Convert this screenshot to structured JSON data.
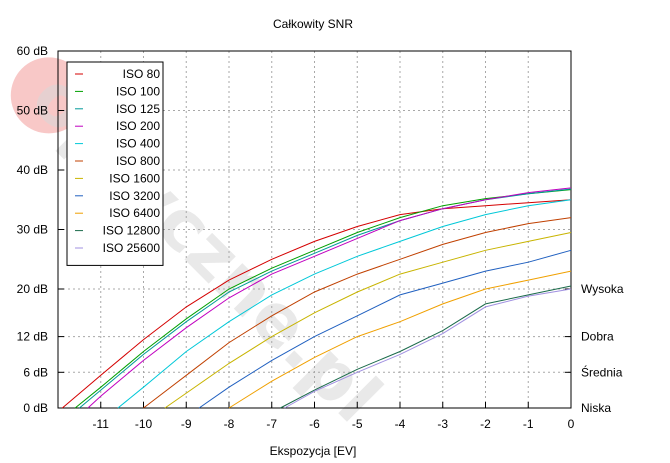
{
  "chart_data": {
    "type": "line",
    "title": "Całkowity SNR",
    "xlabel": "Ekspozycja [EV]",
    "ylabel": "",
    "x_ticks": [
      "-11",
      "-10",
      "-9",
      "-8",
      "-7",
      "-6",
      "-5",
      "-4",
      "-3",
      "-2",
      "-1",
      "0"
    ],
    "y_ticks": [
      {
        "value": 0,
        "label": "0 dB"
      },
      {
        "value": 6,
        "label": "6 dB"
      },
      {
        "value": 12,
        "label": "12 dB"
      },
      {
        "value": 20,
        "label": "20 dB"
      },
      {
        "value": 30,
        "label": "30 dB"
      },
      {
        "value": 40,
        "label": "40 dB"
      },
      {
        "value": 50,
        "label": "50 dB"
      },
      {
        "value": 60,
        "label": "60 dB"
      }
    ],
    "xlim": [
      -12,
      0
    ],
    "ylim": [
      0,
      60
    ],
    "y_scale": "non-linear (equally spaced ticks 0–20 dB and 20–60 dB segments)",
    "grid": true,
    "legend_position": "top-left",
    "quality_labels": [
      {
        "value": 20,
        "label": "Wysoka"
      },
      {
        "value": 12,
        "label": "Dobra"
      },
      {
        "value": 6,
        "label": "Średnia"
      },
      {
        "value": 0,
        "label": "Niska"
      }
    ],
    "series": [
      {
        "name": "ISO 80",
        "color": "#d40000",
        "x": [
          -11.9,
          -11,
          -10,
          -9,
          -8,
          -7,
          -6,
          -5,
          -4,
          -3,
          -2,
          -1,
          0
        ],
        "values": [
          0,
          5.5,
          11.5,
          17,
          21.5,
          25,
          28,
          30.5,
          32.5,
          33.5,
          34,
          34.5,
          35
        ]
      },
      {
        "name": "ISO 100",
        "color": "#00a000",
        "x": [
          -11.6,
          -11,
          -10,
          -9,
          -8,
          -7,
          -6,
          -5,
          -4,
          -3,
          -2,
          -1,
          0
        ],
        "values": [
          0,
          3.5,
          9.5,
          15,
          20,
          23.5,
          26.5,
          29.5,
          32,
          34,
          35.2,
          36,
          36.7
        ]
      },
      {
        "name": "ISO 125",
        "color": "#009a9a",
        "x": [
          -11.5,
          -11,
          -10,
          -9,
          -8,
          -7,
          -6,
          -5,
          -4,
          -3,
          -2,
          -1,
          0
        ],
        "values": [
          0,
          3,
          9,
          14.5,
          19.5,
          23,
          26,
          29,
          31.5,
          33.5,
          35,
          36,
          36.8
        ]
      },
      {
        "name": "ISO 200",
        "color": "#c000c0",
        "x": [
          -11.3,
          -11,
          -10,
          -9,
          -8,
          -7,
          -6,
          -5,
          -4,
          -3,
          -2,
          -1,
          0
        ],
        "values": [
          0,
          2,
          8,
          13.5,
          18.5,
          22.5,
          25.5,
          28.5,
          31.5,
          33.5,
          35,
          36.2,
          37
        ]
      },
      {
        "name": "ISO 400",
        "color": "#00c8d8",
        "x": [
          -10.6,
          -10,
          -9,
          -8,
          -7,
          -6,
          -5,
          -4,
          -3,
          -2,
          -1,
          0
        ],
        "values": [
          0,
          3.5,
          9.5,
          14.5,
          19,
          22.5,
          25.5,
          28,
          30.5,
          32.5,
          34,
          35
        ]
      },
      {
        "name": "ISO 800",
        "color": "#c04000",
        "x": [
          -10,
          -9,
          -8,
          -7,
          -6,
          -5,
          -4,
          -3,
          -2,
          -1,
          0
        ],
        "values": [
          0,
          5.5,
          11,
          15.5,
          19.5,
          22.5,
          25,
          27.5,
          29.5,
          31,
          32
        ]
      },
      {
        "name": "ISO 1600",
        "color": "#c8b400",
        "x": [
          -9.5,
          -9,
          -8,
          -7,
          -6,
          -5,
          -4,
          -3,
          -2,
          -1,
          0
        ],
        "values": [
          0,
          2.5,
          7.5,
          12,
          16,
          19.5,
          22.5,
          24.5,
          26.5,
          28,
          29.5
        ]
      },
      {
        "name": "ISO 3200",
        "color": "#2060c0",
        "x": [
          -8.7,
          -8,
          -7,
          -6,
          -5,
          -4,
          -3,
          -2,
          -1,
          0
        ],
        "values": [
          0,
          3.5,
          8,
          12,
          15.5,
          19,
          21,
          23,
          24.5,
          26.5
        ]
      },
      {
        "name": "ISO 6400",
        "color": "#f0a000",
        "x": [
          -8,
          -7,
          -6,
          -5,
          -4,
          -3,
          -2,
          -1,
          0
        ],
        "values": [
          0,
          4.5,
          8.5,
          12,
          14.5,
          17.5,
          20,
          21.5,
          23
        ]
      },
      {
        "name": "ISO 12800",
        "color": "#1a6a4a",
        "x": [
          -6.8,
          -6,
          -5,
          -4,
          -3,
          -2,
          -1,
          0
        ],
        "values": [
          0,
          3,
          6.5,
          9.5,
          13,
          17.5,
          19,
          20.5
        ]
      },
      {
        "name": "ISO 25600",
        "color": "#a090e0",
        "x": [
          -6.7,
          -6,
          -5,
          -4,
          -3,
          -2,
          -1,
          0
        ],
        "values": [
          0,
          2.8,
          6,
          9,
          12.5,
          17,
          18.8,
          20
        ]
      }
    ]
  },
  "watermark": {
    "text": "optyczne.pl"
  }
}
